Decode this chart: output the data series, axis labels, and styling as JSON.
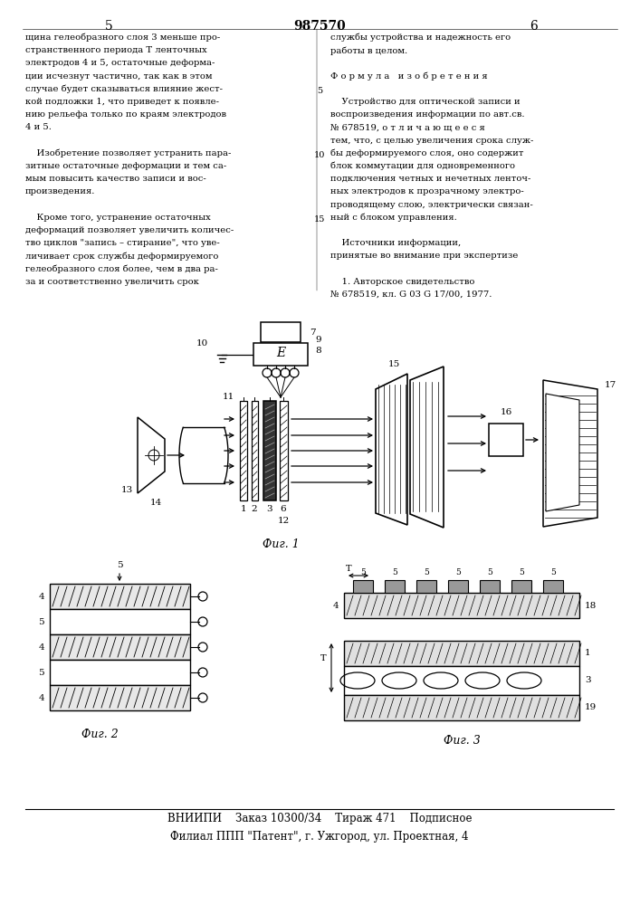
{
  "title_num": "987570",
  "page_left": "5",
  "page_right": "6",
  "text_left_col": [
    "щина гелеобразного слоя 3 меньше про-",
    "странственного периода T ленточных",
    "электродов 4 и 5, остаточные деформа-",
    "ции исчезнут частично, так как в этом",
    "случае будет сказываться влияние жест-",
    "кой подложки 1, что приведет к появле-",
    "нию рельефа только по краям электродов",
    "4 и 5.",
    "",
    "    Изобретение позволяет устранить пара-",
    "зитные остаточные деформации и тем са-",
    "мым повысить качество записи и вос-",
    "произведения.",
    "",
    "    Кроме того, устранение остаточных",
    "деформаций позволяет увеличить количес-",
    "тво циклов \"запись – стирание\", что уве-",
    "личивает срок службы деформируемого",
    "гелеобразного слоя более, чем в два ра-",
    "за и соответственно увеличить срок"
  ],
  "text_right_col": [
    "службы устройства и надежность его",
    "работы в целом.",
    "",
    "Ф о р м у л а   и з о б р е т е н и я",
    "",
    "    Устройство для оптической записи и",
    "воспроизведения информации по авт.св.",
    "№ 678519, о т л и ч а ю щ е е с я",
    "тем, что, с целью увеличения срока служ-",
    "бы деформируемого слоя, оно содержит",
    "блок коммутации для одновременного",
    "подключения четных и нечетных ленточ-",
    "ных электродов к прозрачному электро-",
    "проводящему слою, электрически связан-",
    "ный с блоком управления.",
    "",
    "    Источники информации,",
    "принятые во внимание при экспертизе",
    "",
    "    1. Авторское свидетельство",
    "№ 678519, кл. G 03 G 17/00, 1977."
  ],
  "fig1_label": "Фиг. 1",
  "fig2_label": "Фиг. 2",
  "fig3_label": "Фиг. 3",
  "footer_line1": "ВНИИПИ    Заказ 10300/34    Тираж 471    Подписное",
  "footer_line2": "Филиал ППП \"Патент\", г. Ужгород, ул. Проектная, 4",
  "bg_color": "#ffffff",
  "text_color": "#000000"
}
